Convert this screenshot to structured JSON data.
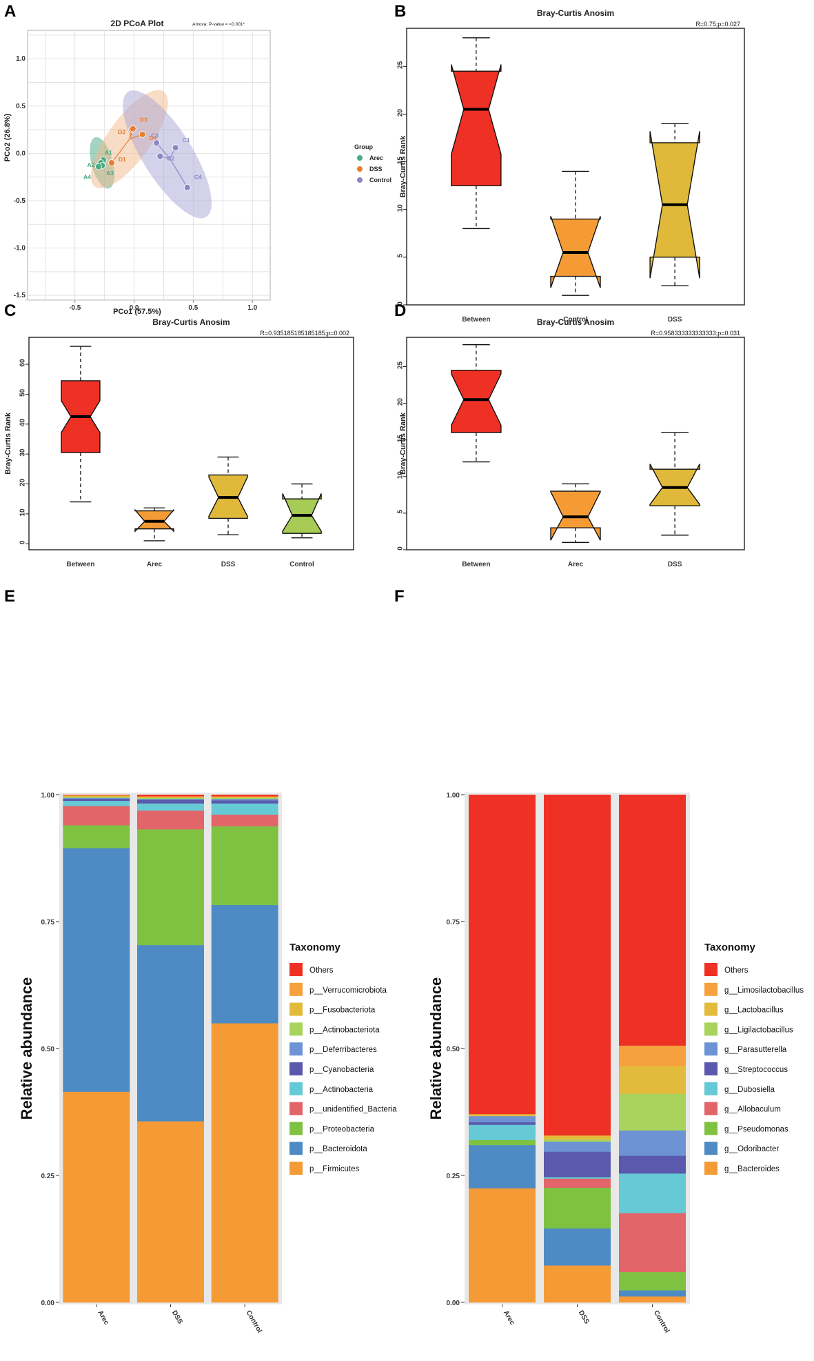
{
  "chart_data": [
    {
      "panel": "A",
      "type": "scatter",
      "title": "2D PCoA Plot",
      "annotation": "Amova: P-value = <0.001*",
      "xlabel": "PCo1 (57.5%)",
      "ylabel": "PCo2 (26.8%)",
      "xlim": [
        -0.9,
        1.15
      ],
      "ylim": [
        -1.55,
        1.3
      ],
      "xticks": [
        -0.5,
        0.0,
        0.5,
        1.0
      ],
      "xtick_labels": [
        "-0.5",
        "0.0",
        "0.5",
        "1.0"
      ],
      "yticks": [
        -1.5,
        -1.0,
        -0.5,
        0.0,
        0.5,
        1.0
      ],
      "ytick_labels": [
        "-1.5",
        "-1.0",
        "-0.5",
        "0.0",
        "0.5",
        "1.0"
      ],
      "legend_title": "Group",
      "groups": [
        {
          "name": "Arec",
          "color": "#4aaa83",
          "points": [
            {
              "label": "A1",
              "x": -0.26,
              "y": -0.07
            },
            {
              "label": "A2",
              "x": -0.28,
              "y": -0.1
            },
            {
              "label": "A3",
              "x": -0.27,
              "y": -0.13
            },
            {
              "label": "A4",
              "x": -0.3,
              "y": -0.14
            }
          ],
          "ellipse": {
            "cx": -0.27,
            "cy": -0.1,
            "rx": 0.09,
            "ry": 0.28,
            "angle": -15,
            "fill": "#4aaa83"
          }
        },
        {
          "name": "DSS",
          "color": "#e87d2e",
          "points": [
            {
              "label": "D1",
              "x": -0.19,
              "y": -0.1
            },
            {
              "label": "D2",
              "x": -0.02,
              "y": 0.25
            },
            {
              "label": "D3",
              "x": -0.01,
              "y": 0.26
            },
            {
              "label": "D4",
              "x": 0.07,
              "y": 0.2
            }
          ],
          "ellipse": {
            "cx": -0.04,
            "cy": 0.15,
            "rx": 0.18,
            "ry": 0.62,
            "angle": 36,
            "fill": "#f2b98c"
          }
        },
        {
          "name": "Control",
          "color": "#8a87c4",
          "points": [
            {
              "label": "C1",
              "x": 0.35,
              "y": 0.06
            },
            {
              "label": "C2",
              "x": 0.22,
              "y": -0.03
            },
            {
              "label": "C3",
              "x": 0.19,
              "y": 0.11
            },
            {
              "label": "C4",
              "x": 0.45,
              "y": -0.36
            }
          ],
          "ellipse": {
            "cx": 0.28,
            "cy": -0.01,
            "rx": 0.21,
            "ry": 0.78,
            "angle": -32,
            "fill": "#a9a6d8"
          }
        }
      ]
    },
    {
      "panel": "B",
      "type": "box",
      "title": "Bray-Curtis Anosim",
      "stat": "R=0.75;p=0.027",
      "ylabel": "Bray-Curtis Rank",
      "ylim": [
        0,
        29
      ],
      "yticks": [
        0,
        5,
        10,
        15,
        20,
        25
      ],
      "ytick_labels": [
        "0",
        "5",
        "10",
        "15",
        "20",
        "25"
      ],
      "boxes": [
        {
          "label": "Between",
          "color": "#ee3124",
          "min": 8,
          "q1": 12.5,
          "median": 20.5,
          "q3": 24.5,
          "max": 28,
          "notch_lo": 15.8,
          "notch_hi": 25.2
        },
        {
          "label": "Control",
          "color": "#f59b36",
          "min": 1,
          "q1": 3,
          "median": 5.5,
          "q3": 9,
          "max": 14,
          "notch_lo": 1.8,
          "notch_hi": 9.3
        },
        {
          "label": "DSS",
          "color": "#e0b93a",
          "min": 2,
          "q1": 5,
          "median": 10.5,
          "q3": 17,
          "max": 19,
          "notch_lo": 2.8,
          "notch_hi": 18.2
        }
      ]
    },
    {
      "panel": "C",
      "type": "box",
      "title": "Bray-Curtis Anosim",
      "stat": "R=0.935185185185185;p=0.002",
      "ylabel": "Bray-Curtis Rank",
      "ylim": [
        -2,
        69
      ],
      "yticks": [
        0,
        10,
        20,
        30,
        40,
        50,
        60
      ],
      "ytick_labels": [
        "0",
        "10",
        "20",
        "30",
        "40",
        "50",
        "60"
      ],
      "boxes": [
        {
          "label": "Between",
          "color": "#ee3124",
          "min": 14,
          "q1": 30.5,
          "median": 42.5,
          "q3": 54.5,
          "max": 66,
          "notch_lo": 37.2,
          "notch_hi": 47.8
        },
        {
          "label": "Arec",
          "color": "#f59b36",
          "min": 1,
          "q1": 5,
          "median": 7.5,
          "q3": 11,
          "max": 12,
          "notch_lo": 4.2,
          "notch_hi": 11.3
        },
        {
          "label": "DSS",
          "color": "#e0b93a",
          "min": 3,
          "q1": 8.5,
          "median": 15.5,
          "q3": 23,
          "max": 29,
          "notch_lo": 9.2,
          "notch_hi": 22.3
        },
        {
          "label": "Control",
          "color": "#a6cc55",
          "min": 2,
          "q1": 3.5,
          "median": 9.5,
          "q3": 15,
          "max": 20,
          "notch_lo": 4.2,
          "notch_hi": 16.8
        }
      ]
    },
    {
      "panel": "D",
      "type": "box",
      "title": "Bray-Curtis Anosim",
      "stat": "R=0.958333333333333;p=0.031",
      "ylabel": "Bray-Curtis Rank",
      "ylim": [
        0,
        29
      ],
      "yticks": [
        0,
        5,
        10,
        15,
        20,
        25
      ],
      "ytick_labels": [
        "0",
        "5",
        "10",
        "15",
        "20",
        "25"
      ],
      "boxes": [
        {
          "label": "Between",
          "color": "#ee3124",
          "min": 12,
          "q1": 16,
          "median": 20.5,
          "q3": 24.5,
          "max": 28,
          "notch_lo": 17,
          "notch_hi": 24
        },
        {
          "label": "Arec",
          "color": "#f59b36",
          "min": 1,
          "q1": 3,
          "median": 4.5,
          "q3": 8,
          "max": 9,
          "notch_lo": 1.3,
          "notch_hi": 7.9
        },
        {
          "label": "DSS",
          "color": "#e0b93a",
          "min": 2,
          "q1": 6,
          "median": 8.5,
          "q3": 11,
          "max": 16,
          "notch_lo": 6.2,
          "notch_hi": 11.7
        }
      ]
    },
    {
      "panel": "E",
      "type": "stacked_bar",
      "ylabel": "Relative abundance",
      "ylim": [
        0,
        1
      ],
      "yticks": [
        0,
        0.25,
        0.5,
        0.75,
        1
      ],
      "ytick_labels": [
        "0.00",
        "0.25",
        "0.50",
        "0.75",
        "1.00"
      ],
      "categories": [
        "Arec",
        "DSS",
        "Control"
      ],
      "legend_title": "Taxonomy",
      "series": [
        {
          "name": "p__Firmicutes",
          "color": "#f59b36",
          "values": [
            0.415,
            0.357,
            0.55
          ]
        },
        {
          "name": "p__Bacteroidota",
          "color": "#4e8bc4",
          "values": [
            0.48,
            0.347,
            0.233
          ]
        },
        {
          "name": "p__Proteobacteria",
          "color": "#7fc242",
          "values": [
            0.045,
            0.228,
            0.155
          ]
        },
        {
          "name": "p__unidentified_Bacteria",
          "color": "#e2656a",
          "values": [
            0.038,
            0.037,
            0.023
          ]
        },
        {
          "name": "p__Actinobacteria",
          "color": "#66cad6",
          "values": [
            0.01,
            0.014,
            0.022
          ]
        },
        {
          "name": "p__Cyanobacteria",
          "color": "#5a59ad",
          "values": [
            0.004,
            0.007,
            0.006
          ]
        },
        {
          "name": "p__Deferribacteres",
          "color": "#6e93d4",
          "values": [
            0.002,
            0.002,
            0.003
          ]
        },
        {
          "name": "p__Actinobacteriota",
          "color": "#a8d45d",
          "values": [
            0.002,
            0.002,
            0.002
          ]
        },
        {
          "name": "p__Fusobacteriota",
          "color": "#e2bb3c",
          "values": [
            0.002,
            0.002,
            0.002
          ]
        },
        {
          "name": "p__Verrucomicrobiota",
          "color": "#f6a13e",
          "values": [
            0.001,
            0.001,
            0.001
          ]
        },
        {
          "name": "Others",
          "color": "#ee3124",
          "values": [
            0.001,
            0.003,
            0.003
          ]
        }
      ]
    },
    {
      "panel": "F",
      "type": "stacked_bar",
      "ylabel": "Relative abundance",
      "ylim": [
        0,
        1
      ],
      "yticks": [
        0,
        0.25,
        0.5,
        0.75,
        1
      ],
      "ytick_labels": [
        "0.00",
        "0.25",
        "0.50",
        "0.75",
        "1.00"
      ],
      "categories": [
        "Arec",
        "DSS",
        "Control"
      ],
      "legend_title": "Taxonomy",
      "series": [
        {
          "name": "g__Bacteroides",
          "color": "#f59b36",
          "values": [
            0.225,
            0.073,
            0.012
          ]
        },
        {
          "name": "g__Odoribacter",
          "color": "#4e8bc4",
          "values": [
            0.085,
            0.073,
            0.012
          ]
        },
        {
          "name": "g__Pseudomonas",
          "color": "#7fc242",
          "values": [
            0.01,
            0.08,
            0.036
          ]
        },
        {
          "name": "g__Allobaculum",
          "color": "#e2656a",
          "values": [
            0.0,
            0.018,
            0.116
          ]
        },
        {
          "name": "g__Dubosiella",
          "color": "#66cad6",
          "values": [
            0.03,
            0.003,
            0.078
          ]
        },
        {
          "name": "g__Streptococcus",
          "color": "#5a59ad",
          "values": [
            0.005,
            0.05,
            0.035
          ]
        },
        {
          "name": "g__Parasutterella",
          "color": "#6e93d4",
          "values": [
            0.012,
            0.02,
            0.05
          ]
        },
        {
          "name": "g__Ligilactobacillus",
          "color": "#a8d45d",
          "values": [
            0.0,
            0.004,
            0.072
          ]
        },
        {
          "name": "g__Lactobacillus",
          "color": "#e2bb3c",
          "values": [
            0.004,
            0.008,
            0.055
          ]
        },
        {
          "name": "g__Limosilactobacillus",
          "color": "#f6a13e",
          "values": [
            0.0,
            0.0,
            0.04
          ]
        },
        {
          "name": "Others",
          "color": "#ee3124",
          "values": [
            0.629,
            0.671,
            0.494
          ]
        }
      ]
    }
  ]
}
